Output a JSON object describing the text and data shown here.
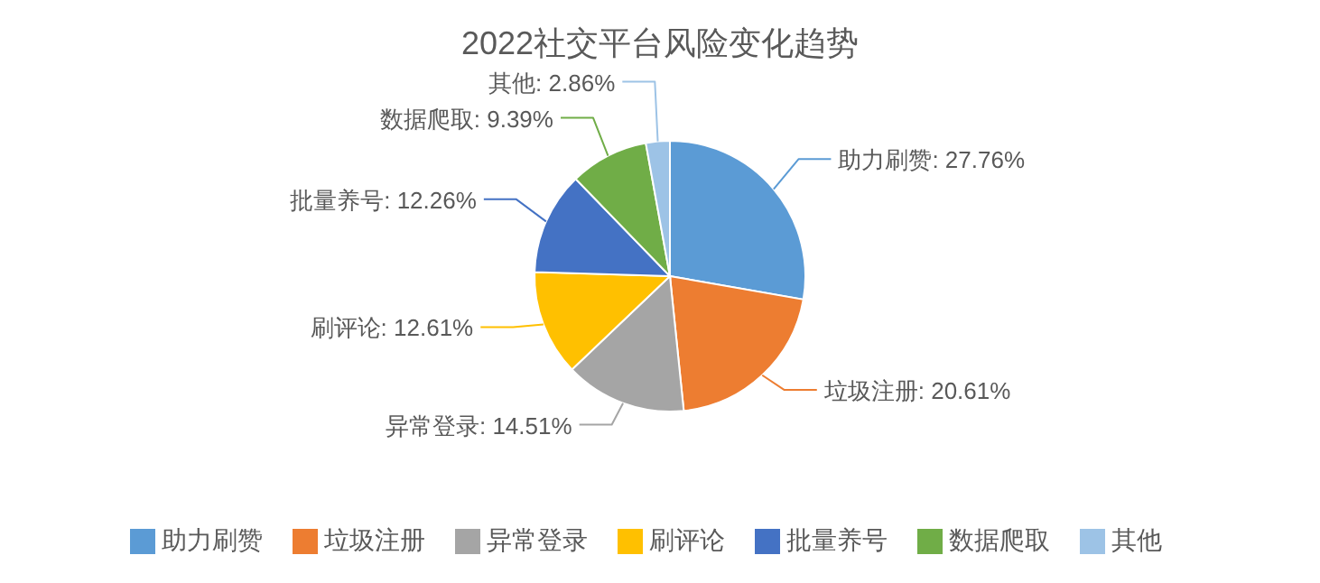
{
  "chart_data": {
    "type": "pie",
    "title": "2022社交平台风险变化趋势",
    "categories": [
      "助力刷赞",
      "垃圾注册",
      "异常登录",
      "刷评论",
      "批量养号",
      "数据爬取",
      "其他"
    ],
    "values": [
      27.76,
      20.61,
      14.51,
      12.61,
      12.26,
      9.39,
      2.86
    ],
    "colors": [
      "#5b9bd5",
      "#ed7d31",
      "#a5a5a5",
      "#ffc000",
      "#4472c4",
      "#70ad47",
      "#9dc3e6"
    ],
    "value_labels": [
      "助力刷赞: 27.76%",
      "垃圾注册: 20.61%",
      "异常登录: 14.51%",
      "刷评论: 12.61%",
      "批量养号: 12.26%",
      "数据爬取: 9.39%",
      "其他: 2.86%"
    ],
    "legend": "bottom"
  }
}
